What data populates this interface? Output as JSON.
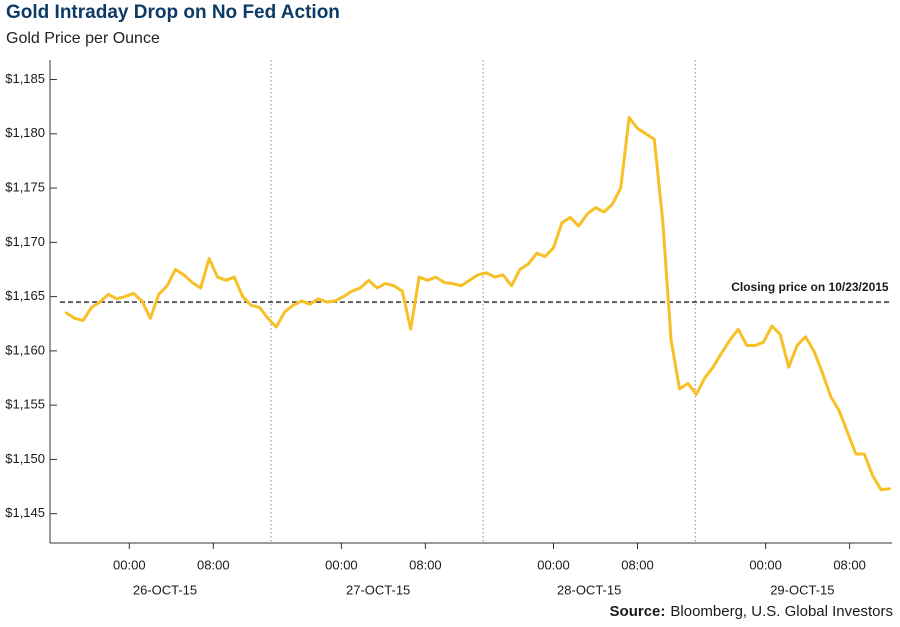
{
  "chart_data": {
    "type": "line",
    "title": "Gold Intraday Drop on No Fed Action",
    "subtitle": "Gold Price per Ounce",
    "source_label": "Source:",
    "source": "Bloomberg, U.S. Global Investors",
    "annotation": {
      "label": "Closing price on 10/23/2015",
      "value": 1164.5
    },
    "xlim": [
      0,
      79.2
    ],
    "ylim": [
      1142.3,
      1186.8
    ],
    "yticks": [
      {
        "value": 1145,
        "label": "$1,145"
      },
      {
        "value": 1150,
        "label": "$1,150"
      },
      {
        "value": 1155,
        "label": "$1,155"
      },
      {
        "value": 1160,
        "label": "$1,160"
      },
      {
        "value": 1165,
        "label": "$1,165"
      },
      {
        "value": 1170,
        "label": "$1,170"
      },
      {
        "value": 1175,
        "label": "$1,175"
      },
      {
        "value": 1180,
        "label": "$1,180"
      },
      {
        "value": 1185,
        "label": "$1,185"
      }
    ],
    "xticks": [
      {
        "value": 6.6,
        "label": "00:00"
      },
      {
        "value": 14.6,
        "label": "08:00"
      },
      {
        "value": 26.8,
        "label": "00:00"
      },
      {
        "value": 34.8,
        "label": "08:00"
      },
      {
        "value": 47.0,
        "label": "00:00"
      },
      {
        "value": 55.0,
        "label": "08:00"
      },
      {
        "value": 67.2,
        "label": "00:00"
      },
      {
        "value": 75.2,
        "label": "08:00"
      }
    ],
    "day_ticks": [
      {
        "value": 10.0,
        "label": "26-OCT-15"
      },
      {
        "value": 30.3,
        "label": "27-OCT-15"
      },
      {
        "value": 50.4,
        "label": "28-OCT-15"
      },
      {
        "value": 70.7,
        "label": "29-OCT-15"
      }
    ],
    "day_breaks": [
      20.1,
      40.3,
      60.5
    ],
    "x": [
      0.6,
      1.4,
      2.2,
      3.0,
      3.8,
      4.6,
      5.4,
      6.2,
      7.0,
      7.8,
      8.6,
      9.4,
      10.2,
      11.0,
      11.8,
      12.6,
      13.4,
      14.2,
      15.0,
      15.8,
      16.6,
      17.4,
      18.2,
      19.0,
      19.8,
      20.6,
      21.4,
      22.2,
      23.0,
      23.8,
      24.6,
      25.4,
      26.2,
      27.0,
      27.8,
      28.6,
      29.4,
      30.2,
      31.0,
      31.8,
      32.6,
      33.4,
      34.2,
      35.0,
      35.8,
      36.6,
      37.4,
      38.2,
      39.0,
      39.8,
      40.6,
      41.4,
      42.2,
      43.0,
      43.8,
      44.6,
      45.4,
      46.2,
      47.0,
      47.8,
      48.6,
      49.4,
      50.2,
      51.0,
      51.8,
      52.6,
      53.4,
      54.2,
      55.0,
      55.8,
      56.6,
      57.4,
      58.2,
      59.0,
      59.8,
      60.6,
      61.4,
      62.2,
      63.0,
      63.8,
      64.6,
      65.4,
      66.2,
      67.0,
      67.8,
      68.6,
      69.4,
      70.2,
      71.0,
      71.8,
      72.6,
      73.4,
      74.2,
      75.0,
      75.8,
      76.6,
      77.4,
      78.2,
      79.0
    ],
    "series": [
      {
        "name": "Gold",
        "color": "#f6c026",
        "values": [
          1163.5,
          1163.0,
          1162.8,
          1164.0,
          1164.5,
          1165.2,
          1164.8,
          1165.0,
          1165.3,
          1164.6,
          1163.0,
          1165.2,
          1166.0,
          1167.5,
          1167.0,
          1166.3,
          1165.8,
          1168.5,
          1166.8,
          1166.5,
          1166.8,
          1165.0,
          1164.2,
          1164.0,
          1163.0,
          1162.2,
          1163.6,
          1164.2,
          1164.6,
          1164.3,
          1164.8,
          1164.5,
          1164.6,
          1165.0,
          1165.5,
          1165.8,
          1166.5,
          1165.8,
          1166.2,
          1166.0,
          1165.5,
          1162.0,
          1166.8,
          1166.5,
          1166.8,
          1166.3,
          1166.2,
          1166.0,
          1166.5,
          1167.0,
          1167.2,
          1166.8,
          1167.0,
          1166.0,
          1167.5,
          1168.0,
          1169.0,
          1168.7,
          1169.5,
          1171.8,
          1172.3,
          1171.5,
          1172.6,
          1173.2,
          1172.8,
          1173.5,
          1175.0,
          1181.5,
          1180.5,
          1180.0,
          1179.5,
          1172.0,
          1161.0,
          1156.5,
          1157.0,
          1156.0,
          1157.5,
          1158.5,
          1159.8,
          1161.0,
          1162.0,
          1160.5,
          1160.5,
          1160.8,
          1162.3,
          1161.5,
          1158.5,
          1160.5,
          1161.3,
          1160.0,
          1158.0,
          1155.8,
          1154.5,
          1152.5,
          1150.5,
          1150.5,
          1148.5,
          1147.2,
          1147.3
        ]
      }
    ]
  }
}
